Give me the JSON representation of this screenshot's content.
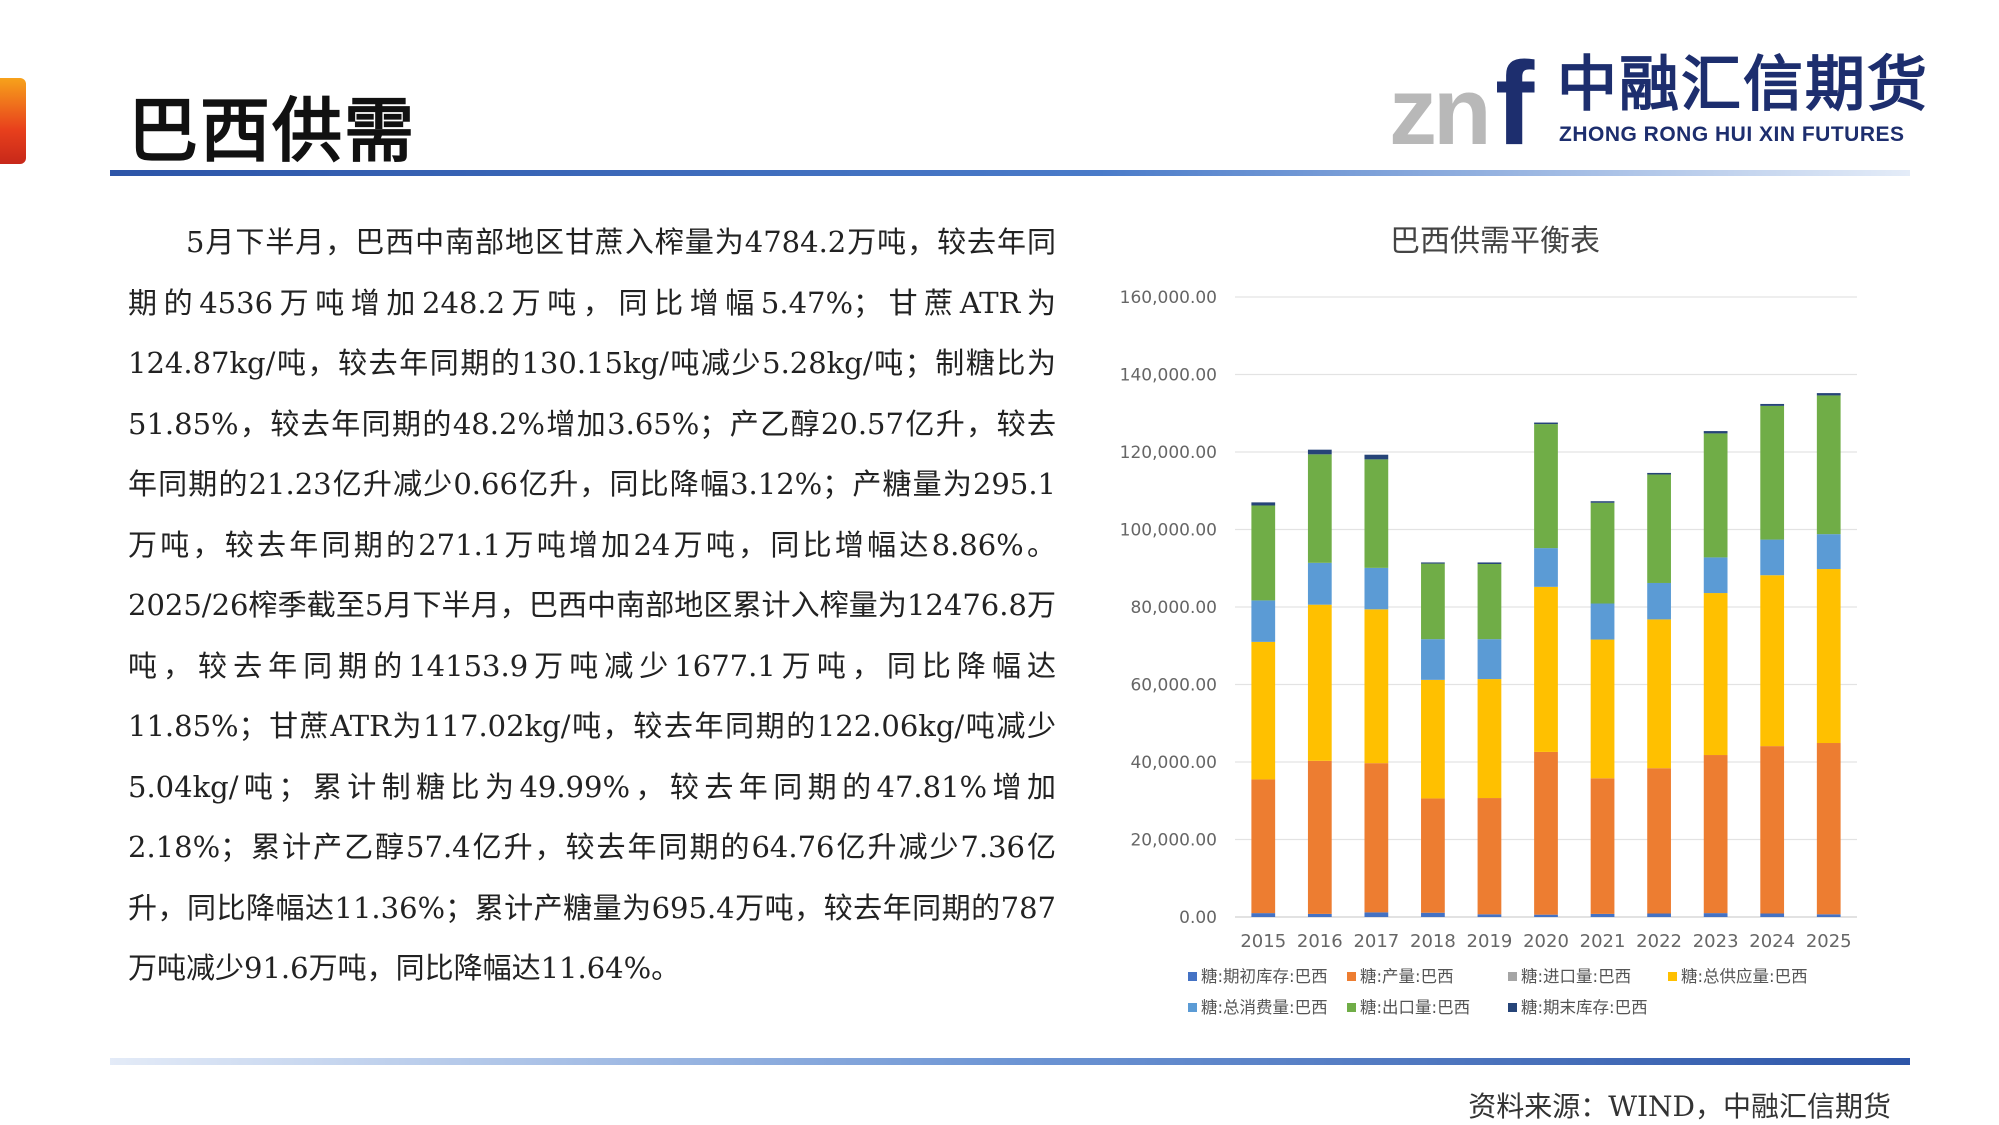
{
  "header": {
    "title": "巴西供需",
    "logo_cn": "中融汇信期货",
    "logo_en": "ZHONG RONG HUI XIN FUTURES"
  },
  "body": {
    "paragraph": "5月下半月，巴西中南部地区甘蔗入榨量为4784.2万吨，较去年同期的4536万吨增加248.2万吨，同比增幅5.47%；甘蔗ATR为124.87kg/吨，较去年同期的130.15kg/吨减少5.28kg/吨；制糖比为51.85%，较去年同期的48.2%增加3.65%；产乙醇20.57亿升，较去年同期的21.23亿升减少0.66亿升，同比降幅3.12%；产糖量为295.1万吨，较去年同期的271.1万吨增加24万吨，同比增幅达8.86%。2025/26榨季截至5月下半月，巴西中南部地区累计入榨量为12476.8万吨，较去年同期的14153.9万吨减少1677.1万吨，同比降幅达11.85%；甘蔗ATR为117.02kg/吨，较去年同期的122.06kg/吨减少5.04kg/吨；累计制糖比为49.99%，较去年同期的47.81%增加2.18%；累计产乙醇57.4亿升，较去年同期的64.76亿升减少7.36亿升，同比降幅达11.36%；累计产糖量为695.4万吨，较去年同期的787万吨减少91.6万吨，同比降幅达11.64%。"
  },
  "footer": {
    "source": "资料来源：WIND，中融汇信期货"
  },
  "colors": {
    "brand_navy": "#1d2e6e",
    "rule_blue": "#2d55a8",
    "series": [
      "#4472c4",
      "#ed7d31",
      "#a5a5a5",
      "#ffc000",
      "#5b9bd5",
      "#70ad47",
      "#264478"
    ]
  },
  "chart_data": {
    "type": "bar",
    "stacked": true,
    "title": "巴西供需平衡表",
    "categories": [
      "2015",
      "2016",
      "2017",
      "2018",
      "2019",
      "2020",
      "2021",
      "2022",
      "2023",
      "2024",
      "2025"
    ],
    "ylim": [
      0,
      160000
    ],
    "yticks": [
      "0.00",
      "20,000.00",
      "40,000.00",
      "60,000.00",
      "80,000.00",
      "100,000.00",
      "120,000.00",
      "140,000.00",
      "160,000.00"
    ],
    "grid": true,
    "legend_position": "bottom",
    "series": [
      {
        "name": "糖:期初库存:巴西",
        "values": [
          1000,
          800,
          1200,
          1100,
          700,
          600,
          800,
          900,
          1000,
          900,
          700
        ]
      },
      {
        "name": "糖:产量:巴西",
        "values": [
          34500,
          39500,
          38500,
          29500,
          30000,
          42000,
          35000,
          37500,
          40800,
          43200,
          44200
        ]
      },
      {
        "name": "糖:进口量:巴西",
        "values": [
          0,
          0,
          0,
          0,
          0,
          0,
          0,
          0,
          0,
          0,
          0
        ]
      },
      {
        "name": "糖:总供应量:巴西",
        "values": [
          35500,
          40300,
          39700,
          30600,
          30700,
          42600,
          35800,
          38400,
          41800,
          44100,
          44900
        ]
      },
      {
        "name": "糖:总消费量:巴西",
        "values": [
          10700,
          10800,
          10700,
          10500,
          10300,
          10000,
          9300,
          9400,
          9200,
          9200,
          9000
        ]
      },
      {
        "name": "糖:出口量:巴西",
        "values": [
          24500,
          28000,
          28000,
          19500,
          19400,
          32000,
          26000,
          28000,
          32000,
          34500,
          35800
        ]
      },
      {
        "name": "糖:期末库存:巴西",
        "values": [
          800,
          1200,
          1200,
          300,
          400,
          400,
          400,
          400,
          600,
          500,
          600
        ]
      }
    ]
  }
}
